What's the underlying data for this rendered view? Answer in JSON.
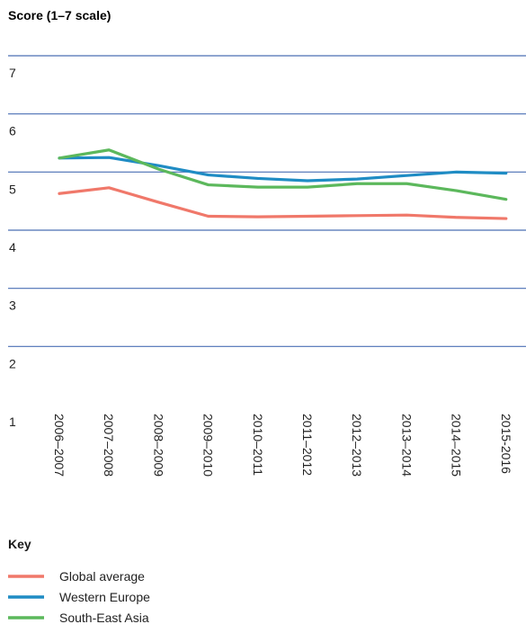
{
  "chart_data": {
    "type": "line",
    "ylabel": "Score (1–7 scale)",
    "ylim": [
      1,
      7
    ],
    "yticks": [
      1,
      2,
      3,
      4,
      5,
      6,
      7
    ],
    "categories": [
      "2006–2007",
      "2007–2008",
      "2008–2009",
      "2009–2010",
      "2010–2011",
      "2011–2012",
      "2012–2013",
      "2013–2014",
      "2014–2015",
      "2015-2016"
    ],
    "series": [
      {
        "name": "Global average",
        "color": "#f0786a",
        "values": [
          4.63,
          4.73,
          4.48,
          4.24,
          4.23,
          4.24,
          4.25,
          4.26,
          4.22,
          4.2
        ]
      },
      {
        "name": "Western Europe",
        "color": "#1f8cc4",
        "values": [
          5.24,
          5.25,
          5.11,
          4.95,
          4.89,
          4.85,
          4.88,
          4.94,
          5.0,
          4.98
        ]
      },
      {
        "name": "South-East Asia",
        "color": "#5cb85c",
        "values": [
          5.24,
          5.38,
          5.05,
          4.78,
          4.74,
          4.74,
          4.8,
          4.8,
          4.68,
          4.53
        ]
      }
    ],
    "legend_title": "Key",
    "legend_placement": "bottom-left",
    "grid": true,
    "grid_color": "#4a6fb5"
  }
}
